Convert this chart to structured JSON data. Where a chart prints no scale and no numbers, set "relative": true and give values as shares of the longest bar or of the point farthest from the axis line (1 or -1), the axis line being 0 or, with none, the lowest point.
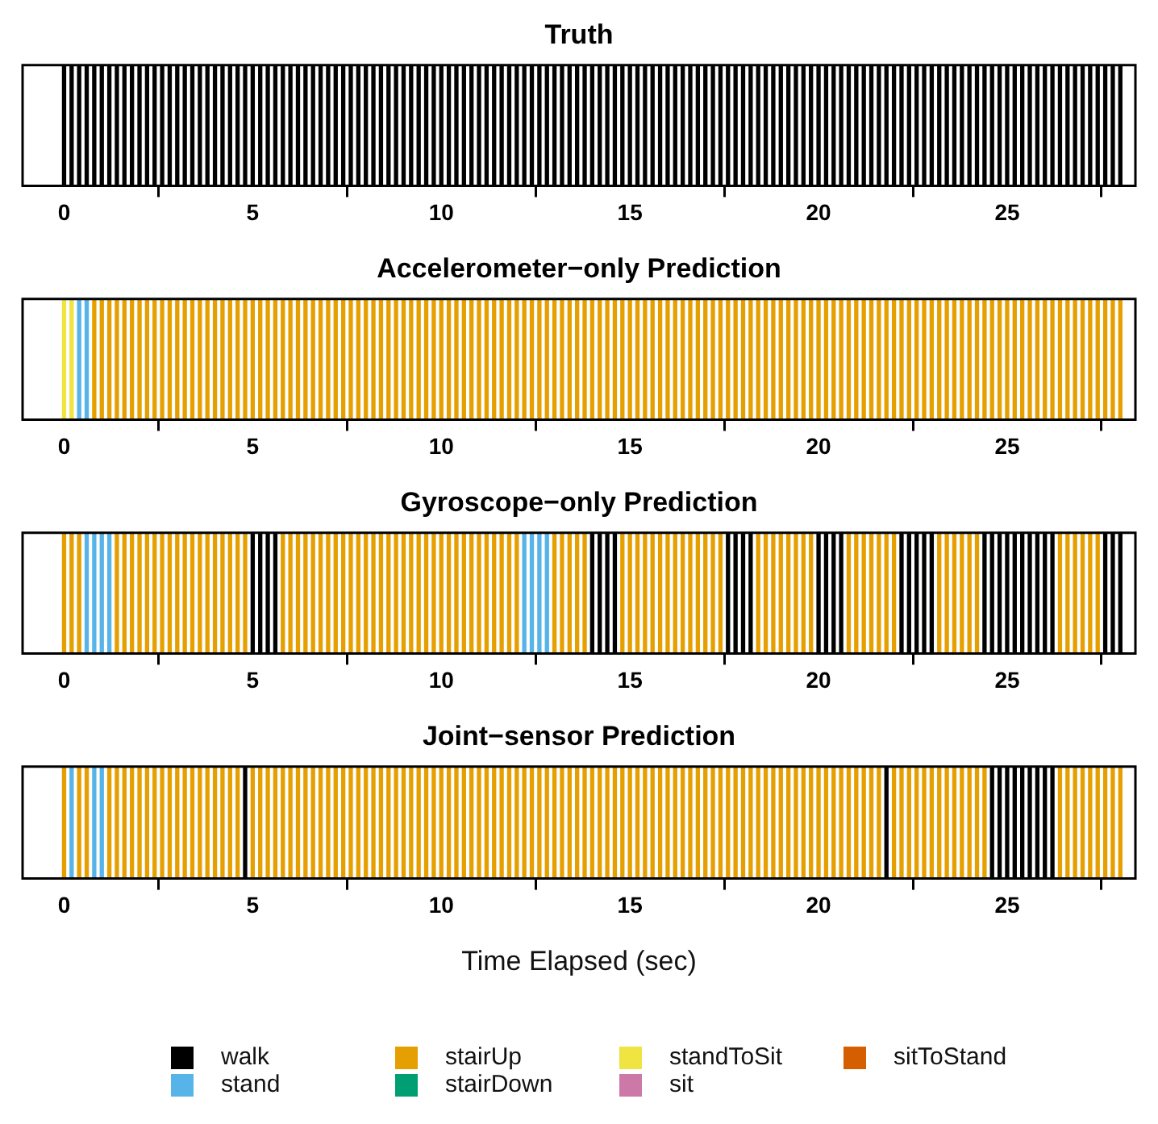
{
  "chart_data": [
    {
      "type": "bar",
      "title": "Truth",
      "relative": true,
      "xlim": [
        -1.1,
        28.4
      ],
      "xticks": [
        0,
        5,
        10,
        15,
        20,
        25
      ],
      "series": [
        {
          "color": "#000000",
          "x": [
            0,
            0.2,
            0.4,
            0.6,
            0.8,
            1,
            1.2,
            1.4,
            1.6,
            1.8,
            2,
            2.2,
            2.4,
            2.6,
            2.8,
            3,
            3.2,
            3.4,
            3.6,
            3.8,
            4,
            4.2,
            4.4,
            4.6,
            4.8,
            5,
            5.2,
            5.4,
            5.6,
            5.8,
            6,
            6.2,
            6.4,
            6.6,
            6.8,
            7,
            7.2,
            7.4,
            7.6,
            7.8,
            8,
            8.2,
            8.4,
            8.6,
            8.8,
            9,
            9.2,
            9.4,
            9.6,
            9.8,
            10,
            10.2,
            10.4,
            10.6,
            10.8,
            11,
            11.2,
            11.4,
            11.6,
            11.8,
            12,
            12.2,
            12.4,
            12.6,
            12.8,
            13,
            13.2,
            13.4,
            13.6,
            13.8,
            14,
            14.2,
            14.4,
            14.6,
            14.8,
            15,
            15.2,
            15.4,
            15.6,
            15.8,
            16,
            16.2,
            16.4,
            16.6,
            16.8,
            17,
            17.2,
            17.4,
            17.6,
            17.8,
            18,
            18.2,
            18.4,
            18.6,
            18.8,
            19,
            19.2,
            19.4,
            19.6,
            19.8,
            20,
            20.2,
            20.4,
            20.6,
            20.8,
            21,
            21.2,
            21.4,
            21.6,
            21.8,
            22,
            22.2,
            22.4,
            22.6,
            22.8,
            23,
            23.2,
            23.4,
            23.6,
            23.8,
            24,
            24.2,
            24.4,
            24.6,
            24.8,
            25,
            25.2,
            25.4,
            25.6,
            25.8,
            26,
            26.2,
            26.4,
            26.6,
            26.8,
            27,
            27.2,
            27.4,
            27.6,
            27.8,
            28
          ],
          "values": [
            1,
            1,
            1,
            1,
            1,
            1,
            1,
            1,
            1,
            1,
            1,
            1,
            1,
            1,
            1,
            1,
            1,
            1,
            1,
            1,
            1,
            1,
            1,
            1,
            1,
            1,
            1,
            1,
            1,
            1,
            1,
            1,
            1,
            1,
            1,
            1,
            1,
            1,
            1,
            1,
            1,
            1,
            1,
            1,
            1,
            1,
            1,
            1,
            1,
            1,
            1,
            1,
            1,
            1,
            1,
            1,
            1,
            1,
            1,
            1,
            1,
            1,
            1,
            1,
            1,
            1,
            1,
            1,
            1,
            1,
            1,
            1,
            1,
            1,
            1,
            1,
            1,
            1,
            1,
            1,
            1,
            1,
            1,
            1,
            1,
            1,
            1,
            1,
            1,
            1,
            1,
            1,
            1,
            1,
            1,
            1,
            1,
            1,
            1,
            1,
            1,
            1,
            1,
            1,
            1,
            1,
            1,
            1,
            1,
            1,
            1,
            1,
            1,
            1,
            1,
            1,
            1,
            1,
            1,
            1,
            1,
            1,
            1,
            1,
            1,
            1,
            1,
            1,
            1,
            1,
            1,
            1,
            1,
            1,
            1,
            1,
            1,
            1,
            1,
            1,
            1
          ]
        }
      ]
    },
    {
      "type": "bar",
      "title": "Accelerometer−only Prediction",
      "relative": true,
      "xlim": [
        -1.1,
        28.4
      ],
      "xticks": [
        0,
        5,
        10,
        15,
        20,
        25
      ],
      "series": [
        {
          "color": "#f0e442",
          "x": [
            0,
            0.2
          ],
          "values": [
            1,
            1
          ]
        },
        {
          "color": "#56b4e9",
          "x": [
            0.4,
            0.6
          ],
          "values": [
            1,
            1
          ]
        },
        {
          "color": "#e69f00",
          "x": [
            0.8,
            1,
            1.2,
            1.4,
            1.6,
            1.8,
            2,
            2.2,
            2.4,
            2.6,
            2.8,
            3,
            3.2,
            3.4,
            3.6,
            3.8,
            4,
            4.2,
            4.4,
            4.6,
            4.8,
            5,
            5.2,
            5.4,
            5.6,
            5.8,
            6,
            6.2,
            6.4,
            6.6,
            6.8,
            7,
            7.2,
            7.4,
            7.6,
            7.8,
            8,
            8.2,
            8.4,
            8.6,
            8.8,
            9,
            9.2,
            9.4,
            9.6,
            9.8,
            10,
            10.2,
            10.4,
            10.6,
            10.8,
            11,
            11.2,
            11.4,
            11.6,
            11.8,
            12,
            12.2,
            12.4,
            12.6,
            12.8,
            13,
            13.2,
            13.4,
            13.6,
            13.8,
            14,
            14.2,
            14.4,
            14.6,
            14.8,
            15,
            15.2,
            15.4,
            15.6,
            15.8,
            16,
            16.2,
            16.4,
            16.6,
            16.8,
            17,
            17.2,
            17.4,
            17.6,
            17.8,
            18,
            18.2,
            18.4,
            18.6,
            18.8,
            19,
            19.2,
            19.4,
            19.6,
            19.8,
            20,
            20.2,
            20.4,
            20.6,
            20.8,
            21,
            21.2,
            21.4,
            21.6,
            21.8,
            22,
            22.2,
            22.4,
            22.6,
            22.8,
            23,
            23.2,
            23.4,
            23.6,
            23.8,
            24,
            24.2,
            24.4,
            24.6,
            24.8,
            25,
            25.2,
            25.4,
            25.6,
            25.8,
            26,
            26.2,
            26.4,
            26.6,
            26.8,
            27,
            27.2,
            27.4,
            27.6,
            27.8,
            28
          ],
          "values": [
            1,
            1,
            1,
            1,
            1,
            1,
            1,
            1,
            1,
            1,
            1,
            1,
            1,
            1,
            1,
            1,
            1,
            1,
            1,
            1,
            1,
            1,
            1,
            1,
            1,
            1,
            1,
            1,
            1,
            1,
            1,
            1,
            1,
            1,
            1,
            1,
            1,
            1,
            1,
            1,
            1,
            1,
            1,
            1,
            1,
            1,
            1,
            1,
            1,
            1,
            1,
            1,
            1,
            1,
            1,
            1,
            1,
            1,
            1,
            1,
            1,
            1,
            1,
            1,
            1,
            1,
            1,
            1,
            1,
            1,
            1,
            1,
            1,
            1,
            1,
            1,
            1,
            1,
            1,
            1,
            1,
            1,
            1,
            1,
            1,
            1,
            1,
            1,
            1,
            1,
            1,
            1,
            1,
            1,
            1,
            1,
            1,
            1,
            1,
            1,
            1,
            1,
            1,
            1,
            1,
            1,
            1,
            1,
            1,
            1,
            1,
            1,
            1,
            1,
            1,
            1,
            1,
            1,
            1,
            1,
            1,
            1,
            1,
            1,
            1,
            1,
            1,
            1,
            1,
            1,
            1,
            1,
            1,
            1,
            1,
            1,
            1
          ]
        }
      ]
    },
    {
      "type": "bar",
      "title": "Gyroscope−only Prediction",
      "relative": true,
      "xlim": [
        -1.1,
        28.4
      ],
      "xticks": [
        0,
        5,
        10,
        15,
        20,
        25
      ],
      "series": [
        {
          "color": "#e69f00",
          "x": [
            0,
            0.2,
            0.4,
            1.4,
            1.6,
            1.8,
            2,
            2.2,
            2.4,
            2.6,
            2.8,
            3,
            3.2,
            3.4,
            3.6,
            3.8,
            4,
            4.2,
            4.4,
            4.6,
            4.8,
            5.8,
            6,
            6.2,
            6.4,
            6.6,
            6.8,
            7,
            7.2,
            7.4,
            7.6,
            7.8,
            8,
            8.2,
            8.4,
            8.6,
            8.8,
            9,
            9.2,
            9.4,
            9.6,
            9.8,
            10,
            10.2,
            10.4,
            10.6,
            10.8,
            11,
            11.2,
            11.4,
            11.6,
            11.8,
            12,
            13,
            13.2,
            13.4,
            13.6,
            13.8,
            14.8,
            15,
            15.2,
            15.4,
            15.6,
            15.8,
            16,
            16.2,
            16.4,
            16.6,
            16.8,
            17,
            17.2,
            17.4,
            18.4,
            18.6,
            18.8,
            19,
            19.2,
            19.4,
            19.6,
            19.8,
            20.8,
            21,
            21.2,
            21.4,
            21.6,
            21.8,
            22,
            23.2,
            23.4,
            23.6,
            23.8,
            24,
            24.2,
            26.4,
            26.6,
            26.8,
            27,
            27.2,
            27.4
          ],
          "values": [
            1,
            1,
            1,
            1,
            1,
            1,
            1,
            1,
            1,
            1,
            1,
            1,
            1,
            1,
            1,
            1,
            1,
            1,
            1,
            1,
            1,
            1,
            1,
            1,
            1,
            1,
            1,
            1,
            1,
            1,
            1,
            1,
            1,
            1,
            1,
            1,
            1,
            1,
            1,
            1,
            1,
            1,
            1,
            1,
            1,
            1,
            1,
            1,
            1,
            1,
            1,
            1,
            1,
            1,
            1,
            1,
            1,
            1,
            1,
            1,
            1,
            1,
            1,
            1,
            1,
            1,
            1,
            1,
            1,
            1,
            1,
            1,
            1,
            1,
            1,
            1,
            1,
            1,
            1,
            1,
            1,
            1,
            1,
            1,
            1,
            1,
            1,
            1,
            1,
            1,
            1,
            1,
            1,
            1,
            1,
            1,
            1,
            1,
            1
          ]
        },
        {
          "color": "#56b4e9",
          "x": [
            0.6,
            0.8,
            1,
            1.2,
            12.2,
            12.4,
            12.6,
            12.8
          ],
          "values": [
            1,
            1,
            1,
            1,
            1,
            1,
            1,
            1
          ]
        },
        {
          "color": "#000000",
          "x": [
            5,
            5.2,
            5.4,
            5.6,
            14,
            14.2,
            14.4,
            14.6,
            17.6,
            17.8,
            18,
            18.2,
            20,
            20.2,
            20.4,
            20.6,
            22.2,
            22.4,
            22.6,
            22.8,
            23,
            24.4,
            24.6,
            24.8,
            25,
            25.2,
            25.4,
            25.6,
            25.8,
            26,
            26.2,
            27.6,
            27.8,
            28
          ],
          "values": [
            1,
            1,
            1,
            1,
            1,
            1,
            1,
            1,
            1,
            1,
            1,
            1,
            1,
            1,
            1,
            1,
            1,
            1,
            1,
            1,
            1,
            1,
            1,
            1,
            1,
            1,
            1,
            1,
            1,
            1,
            1,
            1,
            1,
            1
          ]
        }
      ]
    },
    {
      "type": "bar",
      "title": "Joint−sensor Prediction",
      "xlabel": "Time Elapsed (sec)",
      "relative": true,
      "legend": "bottom",
      "xlim": [
        -1.1,
        28.4
      ],
      "xticks": [
        0,
        5,
        10,
        15,
        20,
        25
      ],
      "series": [
        {
          "name": "walk",
          "color": "#000000",
          "x": [
            4.8,
            21.8,
            24.6,
            24.8,
            25,
            25.2,
            25.4,
            25.6,
            25.8,
            26,
            26.2
          ],
          "values": [
            1,
            1,
            1,
            1,
            1,
            1,
            1,
            1,
            1,
            1,
            1
          ]
        },
        {
          "name": "stand",
          "color": "#56b4e9",
          "x": [
            0.2,
            0.8,
            1
          ],
          "values": [
            1,
            1,
            1
          ]
        },
        {
          "name": "stairUp",
          "color": "#e69f00",
          "x": [
            0,
            0.4,
            0.6,
            1.2,
            1.4,
            1.6,
            1.8,
            2,
            2.2,
            2.4,
            2.6,
            2.8,
            3,
            3.2,
            3.4,
            3.6,
            3.8,
            4,
            4.2,
            4.4,
            4.6,
            5,
            5.2,
            5.4,
            5.6,
            5.8,
            6,
            6.2,
            6.4,
            6.6,
            6.8,
            7,
            7.2,
            7.4,
            7.6,
            7.8,
            8,
            8.2,
            8.4,
            8.6,
            8.8,
            9,
            9.2,
            9.4,
            9.6,
            9.8,
            10,
            10.2,
            10.4,
            10.6,
            10.8,
            11,
            11.2,
            11.4,
            11.6,
            11.8,
            12,
            12.2,
            12.4,
            12.6,
            12.8,
            13,
            13.2,
            13.4,
            13.6,
            13.8,
            14,
            14.2,
            14.4,
            14.6,
            14.8,
            15,
            15.2,
            15.4,
            15.6,
            15.8,
            16,
            16.2,
            16.4,
            16.6,
            16.8,
            17,
            17.2,
            17.4,
            17.6,
            17.8,
            18,
            18.2,
            18.4,
            18.6,
            18.8,
            19,
            19.2,
            19.4,
            19.6,
            19.8,
            20,
            20.2,
            20.4,
            20.6,
            20.8,
            21,
            21.2,
            21.4,
            21.6,
            22,
            22.2,
            22.4,
            22.6,
            22.8,
            23,
            23.2,
            23.4,
            23.6,
            23.8,
            24,
            24.2,
            24.4,
            26.4,
            26.6,
            26.8,
            27,
            27.2,
            27.4,
            27.6,
            27.8,
            28
          ],
          "values": [
            1,
            1,
            1,
            1,
            1,
            1,
            1,
            1,
            1,
            1,
            1,
            1,
            1,
            1,
            1,
            1,
            1,
            1,
            1,
            1,
            1,
            1,
            1,
            1,
            1,
            1,
            1,
            1,
            1,
            1,
            1,
            1,
            1,
            1,
            1,
            1,
            1,
            1,
            1,
            1,
            1,
            1,
            1,
            1,
            1,
            1,
            1,
            1,
            1,
            1,
            1,
            1,
            1,
            1,
            1,
            1,
            1,
            1,
            1,
            1,
            1,
            1,
            1,
            1,
            1,
            1,
            1,
            1,
            1,
            1,
            1,
            1,
            1,
            1,
            1,
            1,
            1,
            1,
            1,
            1,
            1,
            1,
            1,
            1,
            1,
            1,
            1,
            1,
            1,
            1,
            1,
            1,
            1,
            1,
            1,
            1,
            1,
            1,
            1,
            1,
            1,
            1,
            1,
            1,
            1,
            1,
            1,
            1,
            1,
            1,
            1,
            1,
            1,
            1,
            1,
            1,
            1,
            1,
            1,
            1,
            1,
            1,
            1,
            1,
            1,
            1,
            1
          ]
        },
        {
          "name": "stairDown",
          "color": "#009e73"
        },
        {
          "name": "standToSit",
          "color": "#f0e442"
        },
        {
          "name": "sit",
          "color": "#cc79a7"
        },
        {
          "name": "sitToStand",
          "color": "#d55e00"
        }
      ]
    }
  ]
}
